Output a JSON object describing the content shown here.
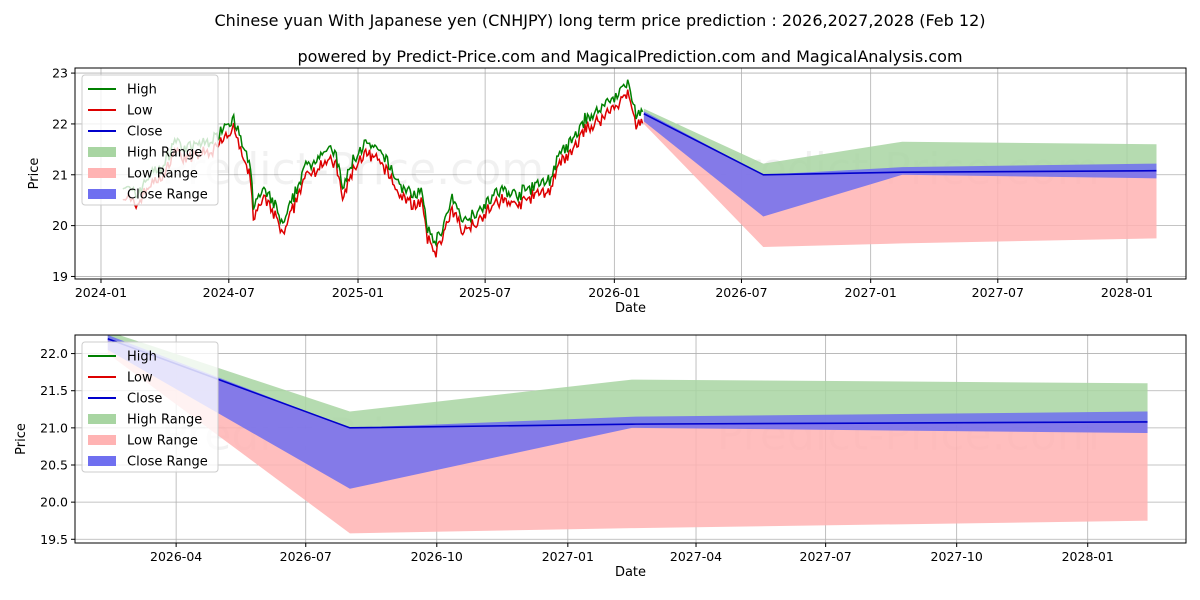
{
  "title_line1": "Chinese yuan With Japanese yen (CNHJPY) long term price prediction : 2026,2027,2028 (Feb 12)",
  "title_line2": "powered by Predict-Price.com and MagicalPrediction.com and MagicalAnalysis.com",
  "watermark": "Predict-Price.com",
  "chart_data": [
    {
      "type": "line",
      "name": "top",
      "xlabel": "Date",
      "ylabel": "Price",
      "grid": true,
      "legend_position": "top-left",
      "xlim": [
        "2023-11-25",
        "2028-03-25"
      ],
      "ylim": [
        18.95,
        23.1
      ],
      "xticks": [
        {
          "date": "2024-01-01",
          "label": "2024-01"
        },
        {
          "date": "2024-07-01",
          "label": "2024-07"
        },
        {
          "date": "2025-01-01",
          "label": "2025-01"
        },
        {
          "date": "2025-07-01",
          "label": "2025-07"
        },
        {
          "date": "2026-01-01",
          "label": "2026-01"
        },
        {
          "date": "2026-07-01",
          "label": "2026-07"
        },
        {
          "date": "2027-01-01",
          "label": "2027-01"
        },
        {
          "date": "2027-07-01",
          "label": "2027-07"
        },
        {
          "date": "2028-01-01",
          "label": "2028-01"
        }
      ],
      "yticks": [
        19,
        20,
        21,
        22,
        23
      ],
      "historical_close": [
        [
          "2024-02-01",
          20.7
        ],
        [
          "2024-02-20",
          20.5
        ],
        [
          "2024-03-10",
          20.9
        ],
        [
          "2024-04-01",
          21.1
        ],
        [
          "2024-04-15",
          21.6
        ],
        [
          "2024-05-01",
          21.4
        ],
        [
          "2024-05-20",
          21.5
        ],
        [
          "2024-06-10",
          21.6
        ],
        [
          "2024-06-25",
          21.9
        ],
        [
          "2024-07-08",
          22.0
        ],
        [
          "2024-07-20",
          21.5
        ],
        [
          "2024-08-01",
          21.0
        ],
        [
          "2024-08-05",
          20.3
        ],
        [
          "2024-08-20",
          20.6
        ],
        [
          "2024-09-05",
          20.3
        ],
        [
          "2024-09-16",
          19.9
        ],
        [
          "2024-09-30",
          20.4
        ],
        [
          "2024-10-15",
          21.0
        ],
        [
          "2024-11-01",
          21.2
        ],
        [
          "2024-11-15",
          21.4
        ],
        [
          "2024-12-01",
          21.3
        ],
        [
          "2024-12-10",
          20.6
        ],
        [
          "2024-12-25",
          21.2
        ],
        [
          "2025-01-10",
          21.5
        ],
        [
          "2025-01-25",
          21.4
        ],
        [
          "2025-02-10",
          21.2
        ],
        [
          "2025-03-01",
          20.7
        ],
        [
          "2025-03-20",
          20.5
        ],
        [
          "2025-04-01",
          20.6
        ],
        [
          "2025-04-10",
          19.8
        ],
        [
          "2025-04-22",
          19.6
        ],
        [
          "2025-05-05",
          20.0
        ],
        [
          "2025-05-15",
          20.4
        ],
        [
          "2025-06-01",
          20.0
        ],
        [
          "2025-06-20",
          20.2
        ],
        [
          "2025-07-05",
          20.4
        ],
        [
          "2025-07-25",
          20.6
        ],
        [
          "2025-08-15",
          20.5
        ],
        [
          "2025-09-10",
          20.7
        ],
        [
          "2025-10-01",
          20.8
        ],
        [
          "2025-10-15",
          21.3
        ],
        [
          "2025-11-05",
          21.6
        ],
        [
          "2025-11-20",
          22.0
        ],
        [
          "2025-12-05",
          22.1
        ],
        [
          "2025-12-20",
          22.3
        ],
        [
          "2026-01-05",
          22.5
        ],
        [
          "2026-01-20",
          22.7
        ],
        [
          "2026-02-01",
          22.1
        ],
        [
          "2026-02-12",
          22.2
        ]
      ],
      "forecast": {
        "dates": [
          "2026-02-12",
          "2026-08-01",
          "2027-02-15",
          "2028-02-12"
        ],
        "close": [
          22.2,
          21.0,
          21.05,
          21.08
        ],
        "high_range_upper": [
          22.3,
          21.22,
          21.65,
          21.6
        ],
        "low_range_lower": [
          22.0,
          19.58,
          19.65,
          19.75
        ],
        "close_range_upper": [
          22.25,
          21.0,
          21.15,
          21.22
        ],
        "close_range_lower": [
          22.05,
          20.18,
          21.0,
          20.93
        ]
      },
      "legend": [
        "High",
        "Low",
        "Close",
        "High Range",
        "Low Range",
        "Close Range"
      ]
    },
    {
      "type": "area",
      "name": "bottom",
      "xlabel": "Date",
      "ylabel": "Price",
      "grid": true,
      "legend_position": "top-left",
      "xlim": [
        "2026-01-20",
        "2028-03-10"
      ],
      "ylim": [
        19.45,
        22.25
      ],
      "xticks": [
        {
          "date": "2026-04-01",
          "label": "2026-04"
        },
        {
          "date": "2026-07-01",
          "label": "2026-07"
        },
        {
          "date": "2026-10-01",
          "label": "2026-10"
        },
        {
          "date": "2027-01-01",
          "label": "2027-01"
        },
        {
          "date": "2027-04-01",
          "label": "2027-04"
        },
        {
          "date": "2027-07-01",
          "label": "2027-07"
        },
        {
          "date": "2027-10-01",
          "label": "2027-10"
        },
        {
          "date": "2028-01-01",
          "label": "2028-01"
        }
      ],
      "yticks": [
        19.5,
        20.0,
        20.5,
        21.0,
        21.5,
        22.0
      ],
      "ytick_labels": [
        "19.5",
        "20.0",
        "20.5",
        "21.0",
        "21.5",
        "22.0"
      ],
      "forecast": {
        "dates": [
          "2026-02-12",
          "2026-08-01",
          "2027-02-15",
          "2028-02-12"
        ],
        "close": [
          22.2,
          21.0,
          21.05,
          21.08
        ],
        "high_range_upper": [
          22.3,
          21.22,
          21.65,
          21.6
        ],
        "low_range_lower": [
          22.0,
          19.58,
          19.65,
          19.75
        ],
        "close_range_upper": [
          22.25,
          21.0,
          21.15,
          21.22
        ],
        "close_range_lower": [
          22.05,
          20.18,
          21.0,
          20.93
        ]
      },
      "legend": [
        "High",
        "Low",
        "Close",
        "High Range",
        "Low Range",
        "Close Range"
      ]
    }
  ],
  "colors": {
    "high": "#008000",
    "low": "#dd0000",
    "close": "#0000cc",
    "high_range": "#a8d5a2",
    "low_range": "#ffb3b3",
    "close_range": "#6f6ff0"
  }
}
